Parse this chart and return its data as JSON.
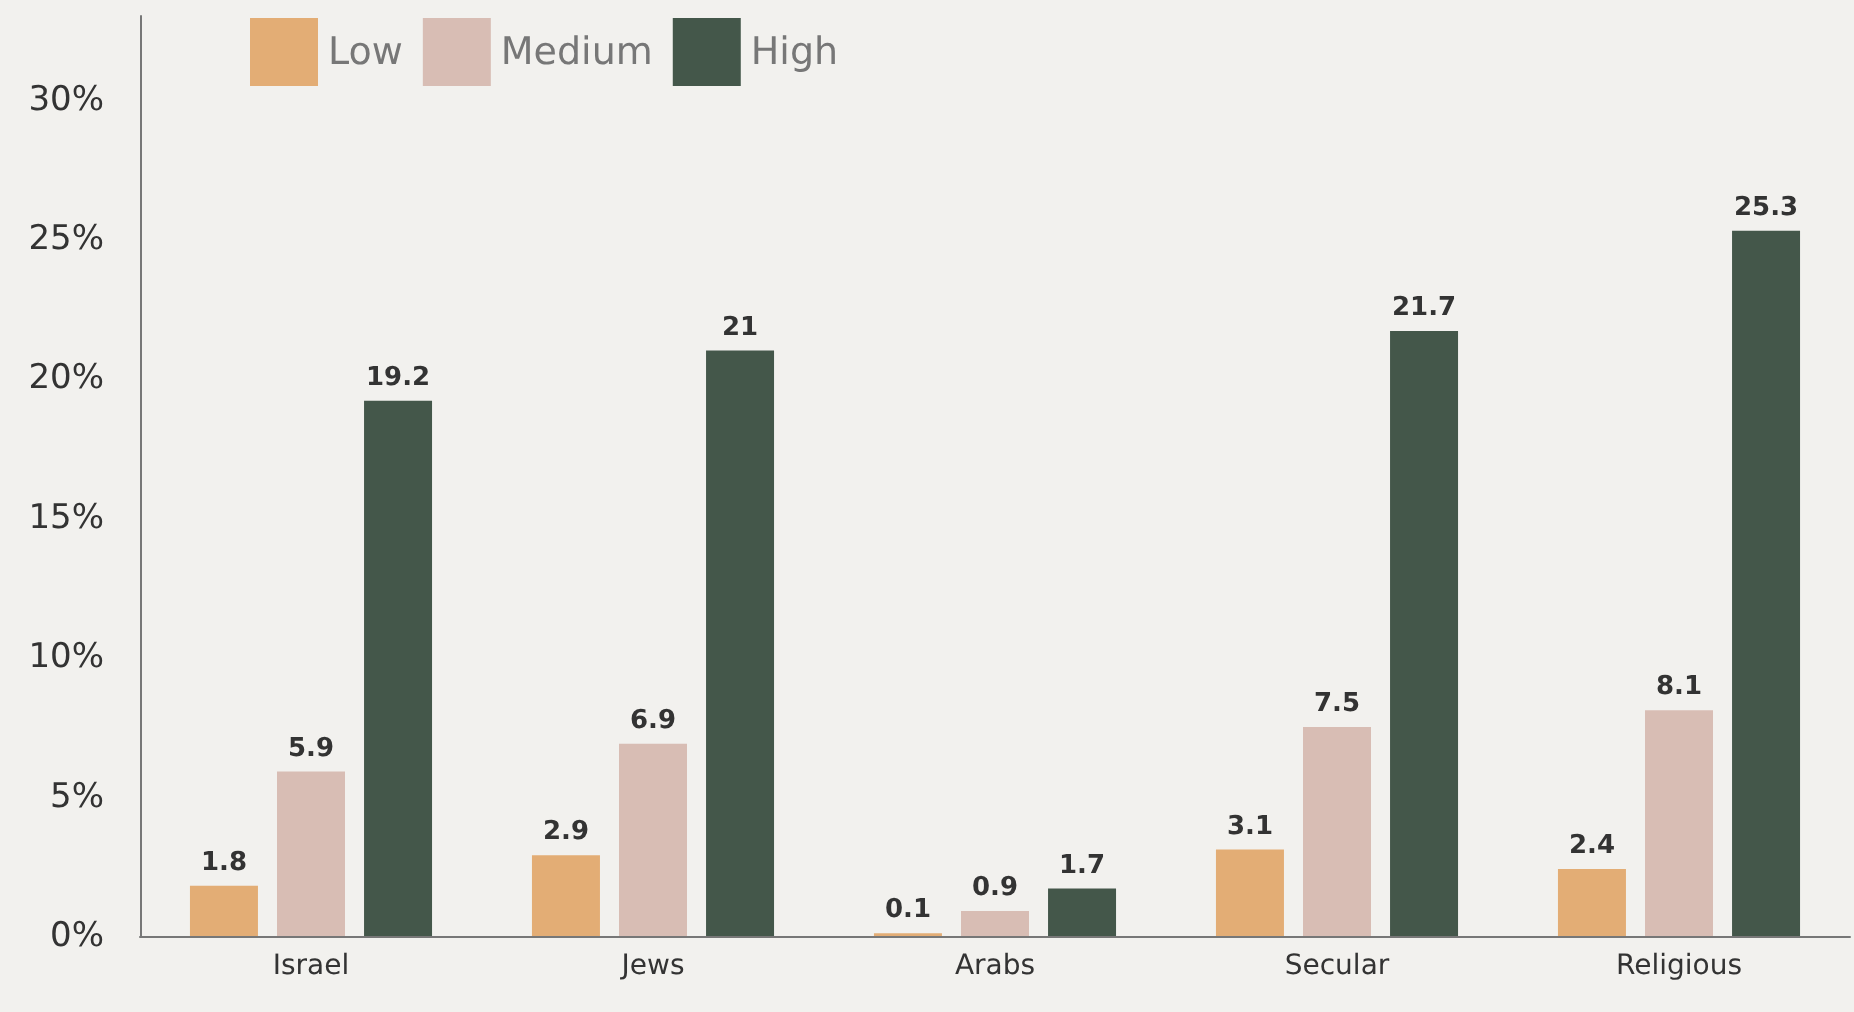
{
  "chart_data": {
    "type": "bar",
    "categories": [
      "Israel",
      "Jews",
      "Arabs",
      "Secular",
      "Religious"
    ],
    "series": [
      {
        "name": "Low",
        "color": "#e3ad75",
        "values": [
          1.8,
          2.9,
          0.1,
          3.1,
          2.4
        ]
      },
      {
        "name": "Medium",
        "color": "#d8bdb4",
        "values": [
          5.9,
          6.9,
          0.9,
          7.5,
          8.1
        ]
      },
      {
        "name": "High",
        "color": "#44574a",
        "values": [
          19.2,
          21,
          1.7,
          21.7,
          25.3
        ]
      }
    ],
    "ylim": [
      0,
      33
    ],
    "yticks": [
      {
        "value": 0,
        "label": "0%"
      },
      {
        "value": 5,
        "label": "5%"
      },
      {
        "value": 10,
        "label": "10%"
      },
      {
        "value": 15,
        "label": "15%"
      },
      {
        "value": 20,
        "label": "20%"
      },
      {
        "value": 25,
        "label": "25%"
      },
      {
        "value": 30,
        "label": "30%"
      }
    ],
    "data_labels": true,
    "legend": "top left",
    "grid": false
  }
}
